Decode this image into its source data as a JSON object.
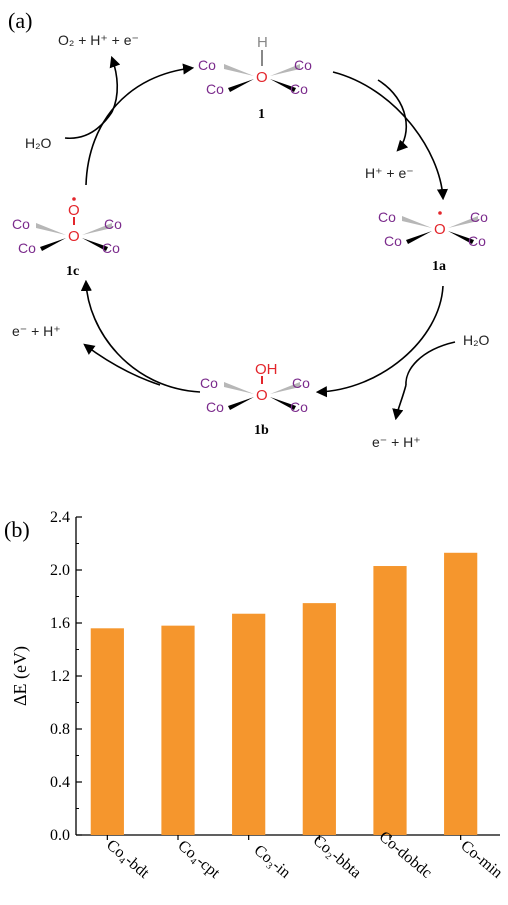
{
  "panel_a": {
    "label": "(a)",
    "species": {
      "top_right": "H⁺ + e⁻",
      "right": "H₂O",
      "bottom_right": "e⁻ + H⁺",
      "left": "e⁻ + H⁺",
      "top_left_water": "H₂O",
      "top_left_products": "O₂ + H⁺ + e⁻"
    },
    "structures": [
      {
        "id": "1",
        "label": "1",
        "top_atom": "H",
        "center": "O",
        "co": "Co"
      },
      {
        "id": "1a",
        "label": "1a",
        "top_atom": "",
        "center": "O",
        "co": "Co"
      },
      {
        "id": "1b",
        "label": "1b",
        "top_atom": "OH",
        "center": "O",
        "co": "Co"
      },
      {
        "id": "1c",
        "label": "1c",
        "top_atom": "O",
        "center": "O",
        "co": "Co"
      }
    ]
  },
  "panel_b": {
    "label": "(b)",
    "chart_data": {
      "type": "bar",
      "categories": [
        "Co₄-bdt",
        "Co₄-cpt",
        "Co₃-in",
        "Co₂-bbta",
        "Co-dobdc",
        "Co-min"
      ],
      "values": [
        1.56,
        1.58,
        1.67,
        1.75,
        2.03,
        2.13
      ],
      "ylabel": "ΔE (eV)",
      "ylim": [
        0,
        2.4
      ],
      "yticks": [
        "0.0",
        "0.4",
        "0.8",
        "1.2",
        "1.6",
        "2.0",
        "2.4"
      ],
      "bar_color": "#f5962d",
      "grid": false
    }
  }
}
